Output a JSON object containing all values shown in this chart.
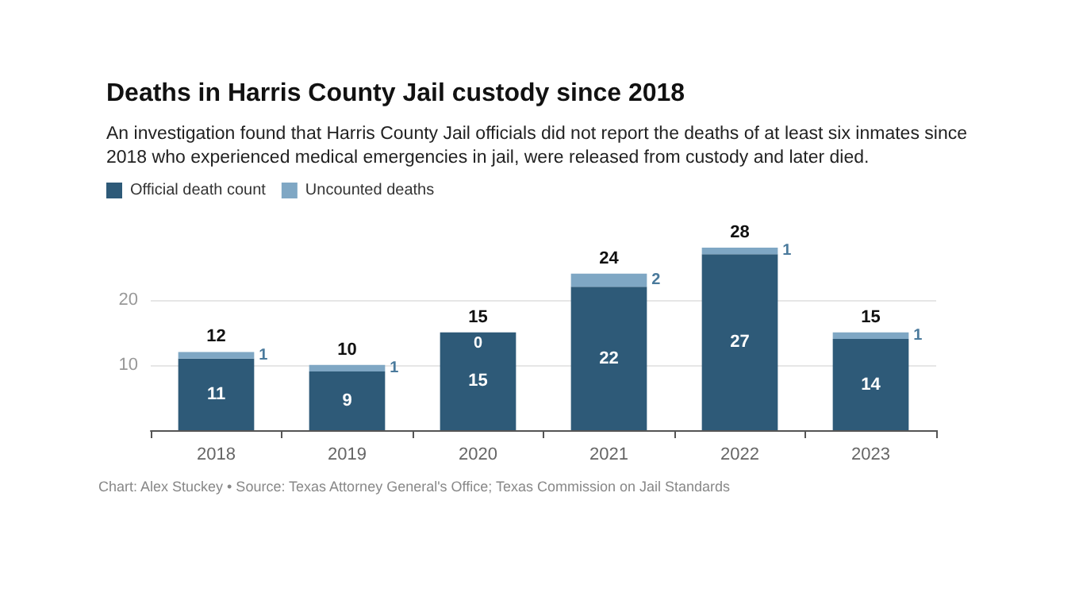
{
  "chart_data": {
    "type": "bar",
    "title": "Deaths in Harris County Jail custody since 2018",
    "subtitle": "An investigation found that Harris County Jail officials did not report the deaths of at least six inmates since 2018 who experienced medical emergencies in jail, were released from custody and later died.",
    "categories": [
      "2018",
      "2019",
      "2020",
      "2021",
      "2022",
      "2023"
    ],
    "series": [
      {
        "name": "Official death count",
        "color": "#2e5a78",
        "values": [
          11,
          9,
          15,
          22,
          27,
          14
        ]
      },
      {
        "name": "Uncounted deaths",
        "color": "#7fa7c4",
        "values": [
          1,
          1,
          0,
          2,
          1,
          1
        ]
      }
    ],
    "stacked": true,
    "data_labels": true,
    "totals": [
      "12",
      "10",
      "15",
      "24",
      "28",
      "15"
    ],
    "ylim": [
      0,
      28
    ],
    "yticks": [
      10,
      20
    ],
    "grid": "y",
    "legend": "top left",
    "annotations": [
      "Chart: Alex Stuckey • Source: Texas Attorney General's Office; Texas Commission on Jail Standards"
    ]
  }
}
